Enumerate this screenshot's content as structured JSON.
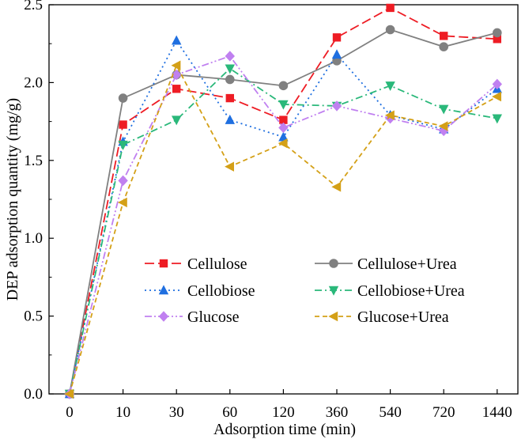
{
  "chart_data": {
    "type": "line",
    "title": "",
    "xlabel": "Adsorption time (min)",
    "ylabel": "DEP adsorption quantity (mg/g)",
    "categories": [
      "0",
      "10",
      "30",
      "60",
      "120",
      "360",
      "540",
      "720",
      "1440"
    ],
    "ylim": [
      0,
      2.5
    ],
    "yticks": [
      "0.0",
      "0.5",
      "1.0",
      "1.5",
      "2.0",
      "2.5"
    ],
    "grid": false,
    "legend_position": "bottom-center",
    "series": [
      {
        "name": "Cellulose",
        "color": "#ee1c24",
        "dash": "long-dash",
        "marker": "square",
        "values": [
          0.0,
          1.73,
          1.96,
          1.9,
          1.76,
          2.29,
          2.48,
          2.3,
          2.28
        ]
      },
      {
        "name": "Cellulose+Urea",
        "color": "#808080",
        "dash": "solid",
        "marker": "circle",
        "values": [
          0.0,
          1.9,
          2.05,
          2.02,
          1.98,
          2.14,
          2.34,
          2.23,
          2.32
        ]
      },
      {
        "name": "Cellobiose",
        "color": "#1f6fe0",
        "dash": "dot",
        "marker": "triangle-up",
        "values": [
          0.0,
          1.62,
          2.27,
          1.76,
          1.65,
          2.18,
          1.79,
          1.7,
          1.96
        ]
      },
      {
        "name": "Cellobiose+Urea",
        "color": "#2ab87a",
        "dash": "dash-dot",
        "marker": "triangle-down",
        "values": [
          0.0,
          1.6,
          1.76,
          2.09,
          1.86,
          1.85,
          1.98,
          1.83,
          1.77
        ]
      },
      {
        "name": "Glucose",
        "color": "#c080f0",
        "dash": "dash-dot-dot",
        "marker": "diamond",
        "values": [
          0.0,
          1.37,
          2.05,
          2.17,
          1.71,
          1.85,
          1.77,
          1.69,
          1.99
        ]
      },
      {
        "name": "Glucose+Urea",
        "color": "#d4a017",
        "dash": "short-dash",
        "marker": "triangle-left",
        "values": [
          0.0,
          1.23,
          2.11,
          1.46,
          1.61,
          1.33,
          1.79,
          1.72,
          1.91
        ]
      }
    ]
  }
}
